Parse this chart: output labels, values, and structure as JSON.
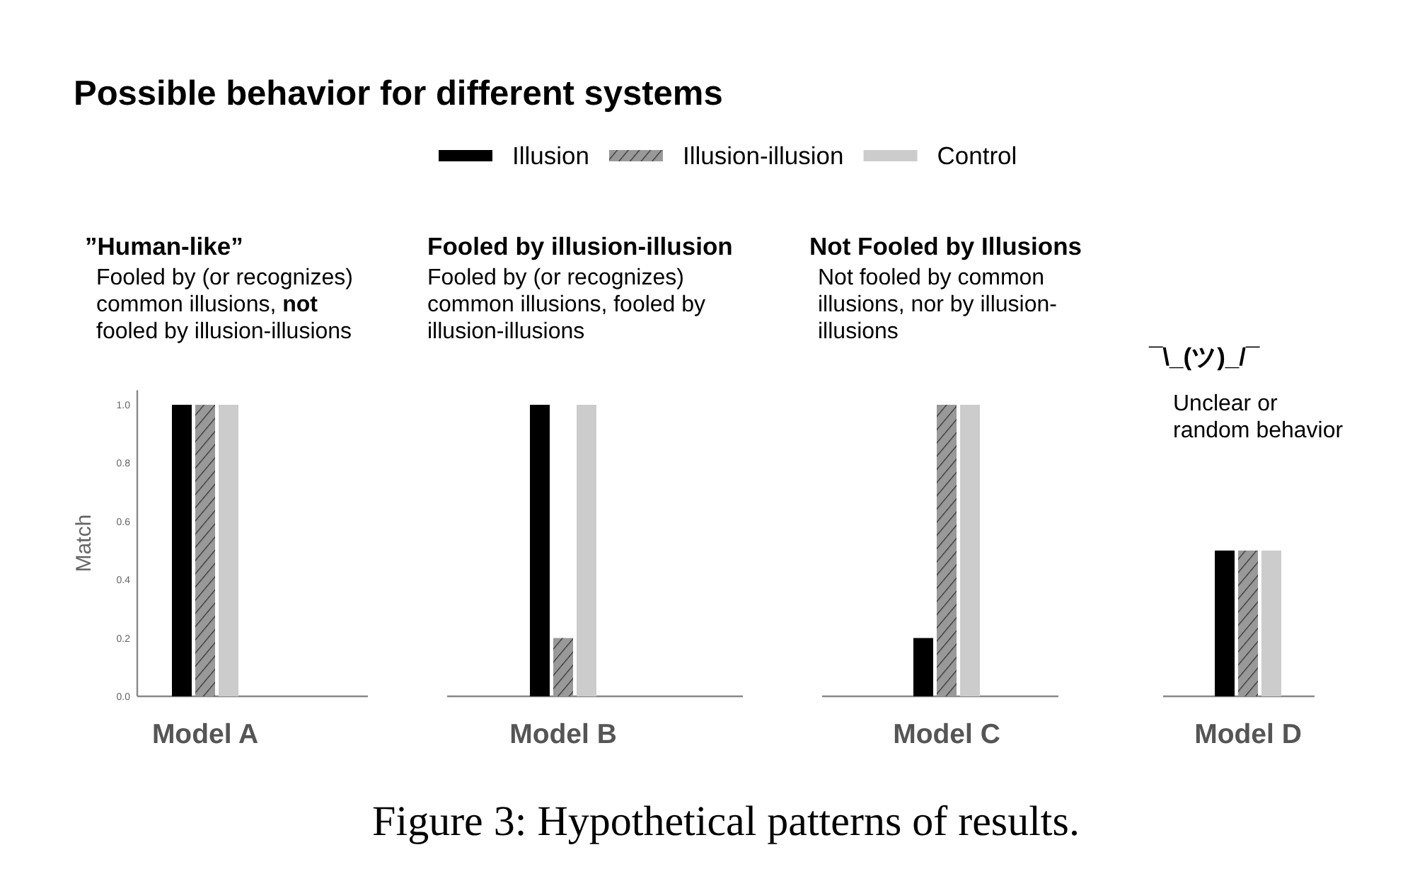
{
  "chart_data": {
    "type": "bar",
    "title": "Possible behavior for different systems",
    "ylabel": "Match",
    "legend": "top",
    "categories": [
      "Model A",
      "Model B",
      "Model C",
      "Model D"
    ],
    "series": [
      {
        "name": "Illusion",
        "color": "#000000",
        "values": [
          1.0,
          1.0,
          0.2,
          0.5
        ]
      },
      {
        "name": "Illusion-illusion",
        "color": "#999999",
        "values": [
          1.0,
          0.2,
          1.0,
          0.5
        ]
      },
      {
        "name": "Control",
        "color": "#cccccc",
        "values": [
          1.0,
          1.0,
          1.0,
          0.5
        ]
      }
    ],
    "ylim": [
      0,
      1.05
    ],
    "yticks": [
      {
        "value": 0,
        "label": "0.0"
      },
      {
        "value": 0.2,
        "label": "0.2"
      },
      {
        "value": 0.4,
        "label": "0.4"
      },
      {
        "value": 0.6,
        "label": "0.6"
      },
      {
        "value": 0.8,
        "label": "0.8"
      },
      {
        "value": 1,
        "label": "1.0"
      }
    ],
    "annotations": [
      "”Human-like”",
      "Fooled by (or recognizes) common illusions, **not** fooled by illusion-illusions",
      "Fooled by illusion-illusion",
      "Fooled by (or recognizes) common illusions, fooled by illusion-illusions",
      "Not Fooled by Illusions",
      "Not fooled by common illusions, nor by illusion-illusions",
      "¯\\_(ツ)_/¯",
      "Unclear or random behavior",
      "Figure 3: Hypothetical patterns of results."
    ]
  }
}
